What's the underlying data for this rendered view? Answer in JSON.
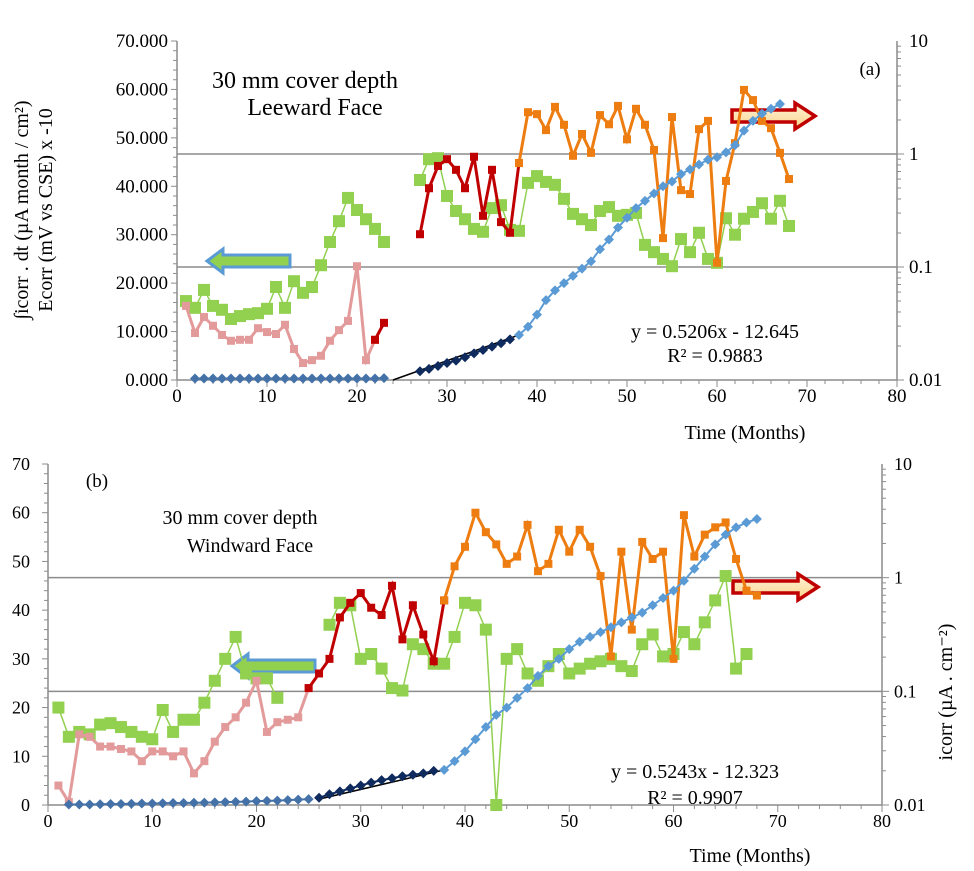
{
  "chart_data": [
    {
      "panel": "(a)",
      "type": "line",
      "annotation": [
        "30 mm cover depth",
        "Leeward Face"
      ],
      "xlabel": "Time (Months)",
      "ylabel_lines": [
        "∫icorr . dt  (µA month / cm²)",
        "Ecorr (mV vs CSE) x -10"
      ],
      "y2label": "",
      "xlim": [
        0,
        80
      ],
      "ylim": [
        0,
        70
      ],
      "y2lim": [
        0.01,
        10
      ],
      "y2scale": "log",
      "xticks": [
        "0",
        "10",
        "20",
        "30",
        "40",
        "50",
        "60",
        "70",
        "80"
      ],
      "yticks": [
        "0.000",
        "10.000",
        "20.000",
        "30.000",
        "40.000",
        "50.000",
        "60.000",
        "70.000"
      ],
      "y2ticks": [
        "0.01",
        "0.1",
        "1",
        "10"
      ],
      "grid": "horizontal at y2 = 0.1 and 1",
      "trendline": {
        "equation": "y = 0.5206x - 12.645",
        "r2": "R² = 0.9883",
        "x": [
          24,
          38
        ],
        "y": [
          0,
          9.3
        ]
      },
      "series": [
        {
          "role": "ecorr-early",
          "color": "#92D050",
          "marker": "square",
          "x": [
            1,
            2,
            3,
            4,
            5,
            6,
            7,
            8,
            9,
            10,
            11,
            12,
            13,
            14,
            15,
            16,
            17,
            18,
            19,
            20,
            21,
            22,
            23
          ],
          "y": [
            16.3,
            14.9,
            18.6,
            15.3,
            14.5,
            12.6,
            13.2,
            13.6,
            13.8,
            14.7,
            19.2,
            14.9,
            20.4,
            18.0,
            19.2,
            23.7,
            28.5,
            32.8,
            37.6,
            35.1,
            33.2,
            31.2,
            28.5
          ]
        },
        {
          "role": "ecorr-late",
          "color": "#92D050",
          "marker": "square",
          "x": [
            27,
            28,
            29,
            30,
            31,
            32,
            33,
            34,
            35,
            36,
            37,
            38,
            39,
            40,
            41,
            42,
            43,
            44,
            45,
            46,
            47,
            48,
            49,
            50,
            51,
            52,
            53,
            54,
            55,
            56,
            57,
            58,
            59,
            60,
            61,
            62,
            63,
            64,
            65,
            66,
            67,
            68
          ],
          "y": [
            41.3,
            45.6,
            45.8,
            38.0,
            34.9,
            33.2,
            31.2,
            30.6,
            35.5,
            36.1,
            31.0,
            30.8,
            40.7,
            42.1,
            40.9,
            40.3,
            37.4,
            34.3,
            33.2,
            32.0,
            34.9,
            35.7,
            33.9,
            34.1,
            34.5,
            27.9,
            26.4,
            25.0,
            23.5,
            29.1,
            26.4,
            30.4,
            25.0,
            24.2,
            33.4,
            30.0,
            33.3,
            34.7,
            36.5,
            33.3,
            37.0,
            31.8
          ]
        },
        {
          "role": "icorr-early",
          "color": "#E39A9A",
          "marker": "square",
          "x": [
            1,
            2,
            3,
            4,
            5,
            6,
            7,
            8,
            9,
            10,
            11,
            12,
            13,
            14,
            15,
            16,
            17,
            18,
            19,
            20,
            21,
            22
          ],
          "y": [
            15.3,
            9.7,
            13.0,
            11.2,
            9.3,
            8.1,
            8.3,
            8.3,
            10.7,
            9.9,
            9.5,
            11.4,
            6.4,
            3.5,
            4.1,
            5.0,
            8.1,
            10.3,
            12.2,
            23.5,
            4.1,
            8.3
          ]
        },
        {
          "role": "icorr-mid",
          "color": "#C00000",
          "marker": "square",
          "x": [
            22,
            23
          ],
          "y": [
            8.3,
            11.8
          ]
        },
        {
          "role": "icorr-red",
          "color": "#C00000",
          "marker": "square",
          "x": [
            27,
            28,
            29,
            30,
            31,
            32,
            33,
            34,
            35,
            36,
            37,
            38
          ],
          "y": [
            30.1,
            39.6,
            44.2,
            45.6,
            43.4,
            39.6,
            46.1,
            33.9,
            43.4,
            32.6,
            30.4,
            44.8
          ]
        },
        {
          "role": "icorr-orange",
          "color": "#ED7D11",
          "marker": "square",
          "x": [
            38,
            39,
            40,
            41,
            42,
            43,
            44,
            45,
            46,
            47,
            48,
            49,
            50,
            51,
            52,
            53,
            54,
            55,
            56,
            57,
            58,
            59,
            60,
            61,
            62,
            63,
            64,
            65,
            66,
            67,
            68
          ],
          "y": [
            44.8,
            55.3,
            54.9,
            51.6,
            56.4,
            52.7,
            46.3,
            50.8,
            46.9,
            54.7,
            52.8,
            56.6,
            49.7,
            56.0,
            52.7,
            47.5,
            29.3,
            54.3,
            39.2,
            38.4,
            51.8,
            53.5,
            24.2,
            41.1,
            48.9,
            59.9,
            57.8,
            53.5,
            52.0,
            46.9,
            41.5
          ]
        },
        {
          "role": "cumulative-early",
          "color": "#4472A8",
          "marker": "diamond",
          "x": [
            2,
            3,
            4,
            5,
            6,
            7,
            8,
            9,
            10,
            11,
            12,
            13,
            14,
            15,
            16,
            17,
            18,
            19,
            20,
            21,
            22,
            23
          ],
          "y": [
            0.3,
            0.3,
            0.3,
            0.3,
            0.3,
            0.3,
            0.3,
            0.3,
            0.3,
            0.3,
            0.3,
            0.3,
            0.3,
            0.3,
            0.3,
            0.3,
            0.3,
            0.3,
            0.3,
            0.3,
            0.3,
            0.4
          ]
        },
        {
          "role": "cumulative-fit",
          "color": "#0F2A5C",
          "marker": "diamond",
          "x": [
            27,
            28,
            29,
            30,
            31,
            32,
            33,
            34,
            35,
            36,
            37
          ],
          "y": [
            1.8,
            2.3,
            2.9,
            3.5,
            4.0,
            4.7,
            5.5,
            6.2,
            6.9,
            7.6,
            8.4
          ]
        },
        {
          "role": "cumulative-late",
          "color": "#5B9BD5",
          "marker": "diamond",
          "x": [
            38,
            39,
            40,
            41,
            42,
            43,
            44,
            45,
            46,
            47,
            48,
            49,
            50,
            51,
            52,
            53,
            54,
            55,
            56,
            57,
            58,
            59,
            60,
            61,
            62,
            63,
            64,
            65,
            66,
            67
          ],
          "y": [
            9.3,
            11,
            13.5,
            16.5,
            18.5,
            20,
            21.5,
            23,
            24.5,
            27,
            29,
            31.5,
            33.5,
            35.5,
            37,
            38.5,
            40,
            41,
            42.5,
            43.5,
            44.5,
            45.5,
            46,
            47,
            48.5,
            51.5,
            53.5,
            55,
            56,
            57
          ]
        }
      ]
    },
    {
      "panel": "(b)",
      "type": "line",
      "annotation": [
        "30 mm cover depth",
        "Windward Face"
      ],
      "xlabel": "Time (Months)",
      "ylabel_lines": [],
      "y2label": "icorr (µA . cm⁻²)",
      "xlim": [
        0,
        80
      ],
      "ylim": [
        0,
        70
      ],
      "y2lim": [
        0.01,
        10
      ],
      "y2scale": "log",
      "xticks": [
        "0",
        "10",
        "20",
        "30",
        "40",
        "50",
        "60",
        "70",
        "80"
      ],
      "yticks": [
        "0",
        "10",
        "20",
        "30",
        "40",
        "50",
        "60",
        "70"
      ],
      "y2ticks": [
        "0.01",
        "0.1",
        "1",
        "10"
      ],
      "grid": "horizontal at y2 = 0.1 and 1",
      "trendline": {
        "equation": "y = 0.5243x - 12.323",
        "r2": "R² = 0.9907",
        "x": [
          26,
          38
        ],
        "y": [
          1.2,
          7.2
        ]
      },
      "series": [
        {
          "role": "ecorr-early",
          "color": "#92D050",
          "marker": "square",
          "x": [
            1,
            2,
            3,
            4,
            5,
            6,
            7,
            8,
            9,
            10,
            11,
            12,
            13,
            14,
            15,
            16,
            17,
            18,
            19,
            20,
            21,
            22
          ],
          "y": [
            20,
            14,
            15,
            14.5,
            16.5,
            16.8,
            16,
            15,
            14,
            13.5,
            19.5,
            15,
            17.5,
            17.5,
            21,
            25.5,
            30,
            34.5,
            27,
            26,
            26,
            22
          ]
        },
        {
          "role": "ecorr-late",
          "color": "#92D050",
          "marker": "square",
          "x": [
            27,
            28,
            29,
            30,
            31,
            32,
            33,
            34,
            35,
            36,
            37,
            38,
            39,
            40,
            41,
            42,
            43,
            44,
            45,
            46,
            47,
            48,
            49,
            50,
            51,
            52,
            53,
            54,
            55,
            56,
            57,
            58,
            59,
            60,
            61,
            62,
            63,
            64,
            65,
            66,
            67
          ],
          "y": [
            37,
            41.5,
            41,
            30,
            31,
            28,
            24,
            23.5,
            33,
            32,
            29,
            29,
            34.5,
            41.5,
            41,
            36,
            0,
            30,
            32,
            27,
            25.5,
            28.5,
            31,
            27,
            28,
            29,
            29.5,
            30,
            28.5,
            27.5,
            33,
            35,
            30.5,
            31,
            35.5,
            33,
            37.5,
            42,
            47,
            28,
            31
          ]
        },
        {
          "role": "icorr-early",
          "color": "#E39A9A",
          "marker": "square",
          "x": [
            1,
            2,
            3,
            4,
            5,
            6,
            7,
            8,
            9,
            10,
            11,
            12,
            13,
            14,
            15,
            16,
            17,
            18,
            19,
            20,
            21,
            22,
            23,
            24,
            25
          ],
          "y": [
            4,
            0.6,
            14.5,
            14,
            12,
            12,
            11.5,
            11,
            9,
            11,
            11,
            10,
            11,
            6.5,
            9,
            13,
            16,
            18,
            21,
            25.5,
            15,
            17,
            17.5,
            18,
            24
          ]
        },
        {
          "role": "icorr-red",
          "color": "#C00000",
          "marker": "square",
          "x": [
            25,
            26,
            27,
            28,
            29,
            30,
            31,
            32,
            33,
            34,
            35,
            36,
            37,
            38
          ],
          "y": [
            24,
            27,
            30,
            38.5,
            41.5,
            43.5,
            40.5,
            39,
            45,
            34,
            41,
            35,
            29.5,
            42
          ]
        },
        {
          "role": "icorr-orange",
          "color": "#ED7D11",
          "marker": "square",
          "x": [
            38,
            39,
            40,
            41,
            42,
            43,
            44,
            45,
            46,
            47,
            48,
            49,
            50,
            51,
            52,
            53,
            54,
            55,
            56,
            57,
            58,
            59,
            60,
            61,
            62,
            63,
            64,
            65,
            66,
            67,
            68
          ],
          "y": [
            42,
            49,
            53,
            60,
            56,
            53.5,
            49.5,
            51,
            57.5,
            48,
            49.5,
            56.5,
            52,
            56.5,
            53,
            47,
            30.5,
            52,
            36,
            54,
            50.5,
            52,
            30,
            59.5,
            51,
            55.5,
            57,
            58,
            50.5,
            44,
            43
          ]
        },
        {
          "role": "cumulative-early",
          "color": "#4472A8",
          "marker": "diamond",
          "x": [
            2,
            3,
            4,
            5,
            6,
            7,
            8,
            9,
            10,
            11,
            12,
            13,
            14,
            15,
            16,
            17,
            18,
            19,
            20,
            21,
            22,
            23,
            24,
            25
          ],
          "y": [
            0.1,
            0.1,
            0.1,
            0.15,
            0.2,
            0.2,
            0.25,
            0.3,
            0.3,
            0.35,
            0.4,
            0.4,
            0.45,
            0.5,
            0.55,
            0.6,
            0.65,
            0.7,
            0.8,
            0.85,
            0.9,
            1.0,
            1.1,
            1.2
          ]
        },
        {
          "role": "cumulative-fit",
          "color": "#0F2A5C",
          "marker": "diamond",
          "x": [
            26,
            27,
            28,
            29,
            30,
            31,
            32,
            33,
            34,
            35,
            36,
            37
          ],
          "y": [
            1.5,
            2.2,
            2.8,
            3.4,
            4,
            4.6,
            5.1,
            5.5,
            5.9,
            6.2,
            6.5,
            7.0
          ]
        },
        {
          "role": "cumulative-late",
          "color": "#5B9BD5",
          "marker": "diamond",
          "x": [
            38,
            39,
            40,
            41,
            42,
            43,
            44,
            45,
            46,
            47,
            48,
            49,
            50,
            51,
            52,
            53,
            54,
            55,
            56,
            57,
            58,
            59,
            60,
            61,
            62,
            63,
            64,
            65,
            66,
            67,
            68
          ],
          "y": [
            7.2,
            9,
            11,
            13.5,
            16,
            18.5,
            20,
            22,
            24,
            26.5,
            28.5,
            30,
            32,
            33.5,
            34.5,
            35.5,
            36.5,
            37.5,
            38.5,
            39.5,
            41,
            42.5,
            44,
            46,
            48.5,
            51,
            53.5,
            55.5,
            57,
            58,
            58.7
          ]
        }
      ]
    }
  ]
}
